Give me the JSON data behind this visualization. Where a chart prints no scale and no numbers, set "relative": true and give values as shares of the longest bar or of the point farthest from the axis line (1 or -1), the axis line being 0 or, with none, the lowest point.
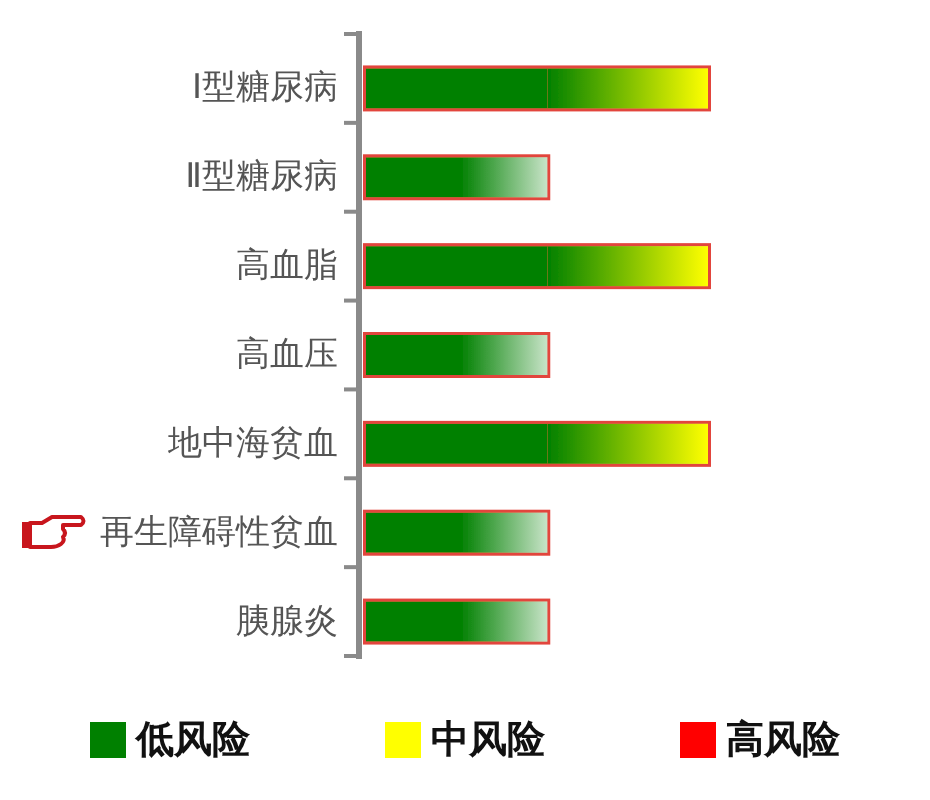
{
  "chart_data": {
    "type": "bar",
    "orientation": "horizontal",
    "stacked": true,
    "relative": true,
    "categories": [
      "Ⅰ型糖尿病",
      "Ⅱ型糖尿病",
      "高血脂",
      "高血压",
      "地中海贫血",
      "再生障碍性贫血",
      "胰腺炎"
    ],
    "series": [
      {
        "name": "低风险",
        "color": "#008000",
        "values": [
          0.53,
          0.53,
          0.53,
          0.53,
          0.53,
          0.53,
          0.53
        ]
      },
      {
        "name": "中风险",
        "color": "#ffff00",
        "values": [
          0.47,
          null,
          0.47,
          null,
          0.47,
          null,
          null
        ]
      },
      {
        "name": "高风险",
        "color": "#ff0000",
        "values": [
          null,
          null,
          null,
          null,
          null,
          null,
          null
        ]
      }
    ],
    "legend": "bottom"
  }
}
